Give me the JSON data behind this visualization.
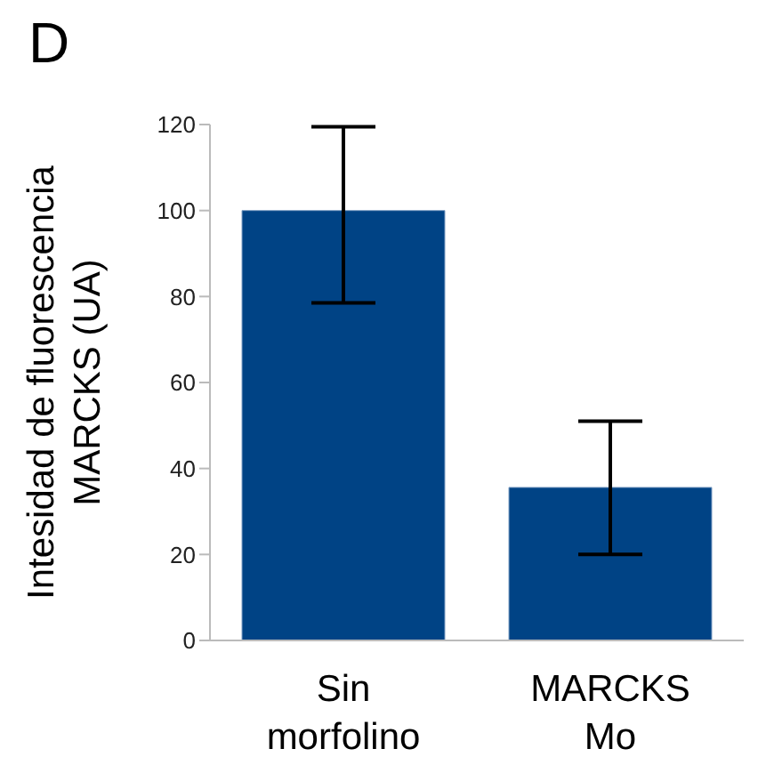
{
  "chart_data": {
    "type": "bar",
    "title": "D",
    "ylabel": "Intesidad de fluorescencia MARCKS (UA)",
    "categories": [
      "Sin morfolino",
      "MARCKS Mo"
    ],
    "values": [
      100,
      35.6
    ],
    "color": "#004385",
    "errors": [
      [
        78.5,
        119.5
      ],
      [
        20,
        51
      ]
    ],
    "ylim": [
      0,
      120
    ],
    "yticks": [
      0,
      20,
      40,
      60,
      80,
      100,
      120
    ],
    "grid": false
  }
}
